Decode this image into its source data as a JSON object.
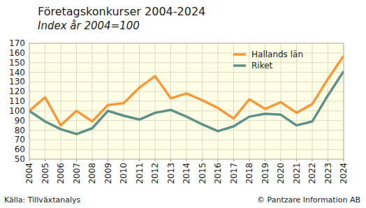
{
  "chart_data": {
    "type": "line",
    "title": "Företagskonkurser 2004-2024",
    "subtitle": "Index år 2004=100",
    "annotations": [
      "Källa: Tillväxtanalys",
      "© Pantzare Information AB"
    ],
    "categories": [
      "2004",
      "2005",
      "2006",
      "2007",
      "2008",
      "2009",
      "2010",
      "2011",
      "2012",
      "2013",
      "2014",
      "2015",
      "2016",
      "2017",
      "2018",
      "2019",
      "2020",
      "2021",
      "2022",
      "2023",
      "2024"
    ],
    "series": [
      {
        "name": "Hallands län",
        "color": "#f7993a",
        "values": [
          100,
          114,
          85,
          100,
          89,
          106,
          108,
          124,
          136,
          113,
          118,
          111,
          103,
          92,
          112,
          102,
          109,
          98,
          107,
          133,
          157
        ]
      },
      {
        "name": "Riket",
        "color": "#5e9188",
        "values": [
          100,
          89,
          81,
          76,
          82,
          100,
          95,
          91,
          98,
          101,
          94,
          86,
          79,
          84,
          94,
          97,
          96,
          85,
          89,
          116,
          141
        ]
      }
    ],
    "ylim": [
      50,
      170
    ],
    "yticks": [
      50,
      60,
      70,
      80,
      90,
      100,
      110,
      120,
      130,
      140,
      150,
      160,
      170
    ],
    "grid": true,
    "legend": "upper right"
  }
}
